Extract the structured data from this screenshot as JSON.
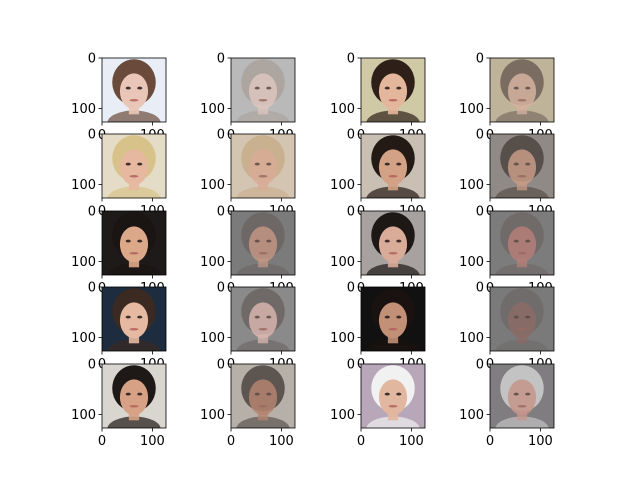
{
  "chart_data": {
    "type": "image-grid",
    "description": "Original face images alternating with reconstructed face images",
    "rows": 5,
    "cols": 4,
    "axis": {
      "x_ticks": [
        0,
        100
      ],
      "y_ticks": [
        0,
        100
      ],
      "x_range": [
        0,
        127
      ],
      "y_range": [
        0,
        127
      ]
    },
    "panels": [
      {
        "row": 0,
        "col": 0,
        "kind": "original",
        "subject": "young girl with finger at lips",
        "bg": "#e9eef6",
        "skin": "#e9c6b8",
        "hair": "#6a4a3a"
      },
      {
        "row": 0,
        "col": 1,
        "kind": "reconstruction",
        "subject": "young girl with finger at lips",
        "bg": "#b9b9b9",
        "skin": "#dcc6bd",
        "hair": "#a9a19b"
      },
      {
        "row": 0,
        "col": 2,
        "kind": "original",
        "subject": "smiling woman with dark hair",
        "bg": "#cfc9a6",
        "skin": "#e4b79d",
        "hair": "#2e2018"
      },
      {
        "row": 0,
        "col": 3,
        "kind": "reconstruction",
        "subject": "smiling woman with dark hair",
        "bg": "#bfb49a",
        "skin": "#d5b1a0",
        "hair": "#6e5f57"
      },
      {
        "row": 1,
        "col": 0,
        "kind": "original",
        "subject": "blonde woman smiling",
        "bg": "#e4dcc6",
        "skin": "#e6b8a0",
        "hair": "#d7c28a"
      },
      {
        "row": 1,
        "col": 1,
        "kind": "reconstruction",
        "subject": "blonde woman smiling",
        "bg": "#d4c5b3",
        "skin": "#d9ab96",
        "hair": "#c7ab88"
      },
      {
        "row": 1,
        "col": 2,
        "kind": "original",
        "subject": "smiling girl with dark hair",
        "bg": "#c9c0b3",
        "skin": "#d3a185",
        "hair": "#231a16"
      },
      {
        "row": 1,
        "col": 3,
        "kind": "reconstruction",
        "subject": "smiling girl with dark hair",
        "bg": "#8f8a86",
        "skin": "#c79a86",
        "hair": "#4d4440"
      },
      {
        "row": 2,
        "col": 0,
        "kind": "original",
        "subject": "young boy, dark background",
        "bg": "#1e1a1a",
        "skin": "#dba98a",
        "hair": "#1a1412"
      },
      {
        "row": 2,
        "col": 1,
        "kind": "reconstruction",
        "subject": "young boy, dark background",
        "bg": "#7b7b7b",
        "skin": "#c29584",
        "hair": "#6b6563"
      },
      {
        "row": 2,
        "col": 2,
        "kind": "original",
        "subject": "woman with glasses",
        "bg": "#a7a1a0",
        "skin": "#d9ab99",
        "hair": "#1d1716"
      },
      {
        "row": 2,
        "col": 3,
        "kind": "reconstruction",
        "subject": "woman with glasses",
        "bg": "#7c7c7c",
        "skin": "#b47f78",
        "hair": "#6e6765"
      },
      {
        "row": 3,
        "col": 0,
        "kind": "original",
        "subject": "young man in profile",
        "bg": "#1d2c3f",
        "skin": "#e5b9a2",
        "hair": "#3b2a22"
      },
      {
        "row": 3,
        "col": 1,
        "kind": "reconstruction",
        "subject": "young man in profile",
        "bg": "#8a8a8a",
        "skin": "#d8b4ad",
        "hair": "#6a6361"
      },
      {
        "row": 3,
        "col": 2,
        "kind": "original",
        "subject": "bearded man in dark",
        "bg": "#111111",
        "skin": "#c28f77",
        "hair": "#1a1210"
      },
      {
        "row": 3,
        "col": 3,
        "kind": "reconstruction",
        "subject": "bearded man in dark",
        "bg": "#7a7a7a",
        "skin": "#8a6b66",
        "hair": "#6f6a69"
      },
      {
        "row": 4,
        "col": 0,
        "kind": "original",
        "subject": "man with glasses",
        "bg": "#d9d6d0",
        "skin": "#d6a184",
        "hair": "#1e1816"
      },
      {
        "row": 4,
        "col": 1,
        "kind": "reconstruction",
        "subject": "man with glasses",
        "bg": "#b6b0a9",
        "skin": "#b58470",
        "hair": "#4d4541"
      },
      {
        "row": 4,
        "col": 2,
        "kind": "original",
        "subject": "child in white helmet",
        "bg": "#b7a7b9",
        "skin": "#e2b7a0",
        "hair": "#f1f1f1"
      },
      {
        "row": 4,
        "col": 3,
        "kind": "reconstruction",
        "subject": "child in white helmet",
        "bg": "#7f7d7f",
        "skin": "#c6958a",
        "hair": "#d0cfcf"
      }
    ]
  }
}
